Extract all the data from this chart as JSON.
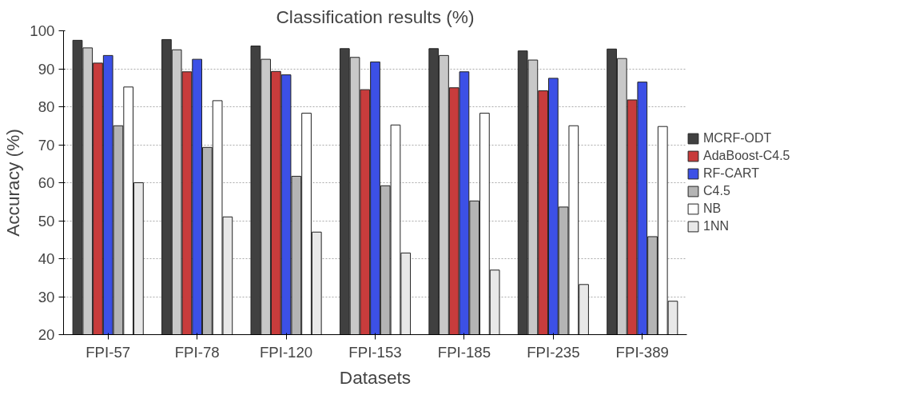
{
  "chart_data": {
    "type": "bar",
    "title": "Classification results (%)",
    "xlabel": "Datasets",
    "ylabel": "Accuracy (%)",
    "categories": [
      "FPI-57",
      "FPI-78",
      "FPI-120",
      "FPI-153",
      "FPI-185",
      "FPI-235",
      "FPI-389"
    ],
    "series": [
      {
        "name": "MCRF-ODT",
        "color": "#404040",
        "values": [
          97.5,
          97.7,
          96,
          95.3,
          95.3,
          94.7,
          95.2
        ]
      },
      {
        "color": "#c8c8c8",
        "values": [
          95.5,
          95,
          92.5,
          93,
          93.5,
          92.3,
          92.7
        ]
      },
      {
        "name": "AdaBoost-C4.5",
        "color": "#c83c3c",
        "values": [
          91.5,
          89.2,
          89.3,
          84.5,
          85,
          84.2,
          81.8
        ]
      },
      {
        "name": "RF-CART",
        "color": "#3c50e6",
        "values": [
          93.5,
          92.5,
          88.4,
          91.8,
          89.2,
          87.5,
          86.5
        ]
      },
      {
        "name": "C4.5",
        "color": "#b4b4b4",
        "values": [
          75,
          69.3,
          61.7,
          59.2,
          55.2,
          53.6,
          45.8
        ]
      },
      {
        "name": "NB",
        "color": "#ffffff",
        "values": [
          85.2,
          81.6,
          78.3,
          75.2,
          78.3,
          75,
          74.8
        ]
      },
      {
        "name": "1NN",
        "color": "#e8e8e8",
        "values": [
          60,
          51,
          47,
          41.5,
          37,
          33.2,
          28.8
        ]
      }
    ],
    "ylim": [
      20,
      100
    ],
    "yticks": [
      20,
      30,
      40,
      50,
      60,
      70,
      80,
      90,
      100
    ],
    "grid": "y",
    "legend": "right"
  }
}
